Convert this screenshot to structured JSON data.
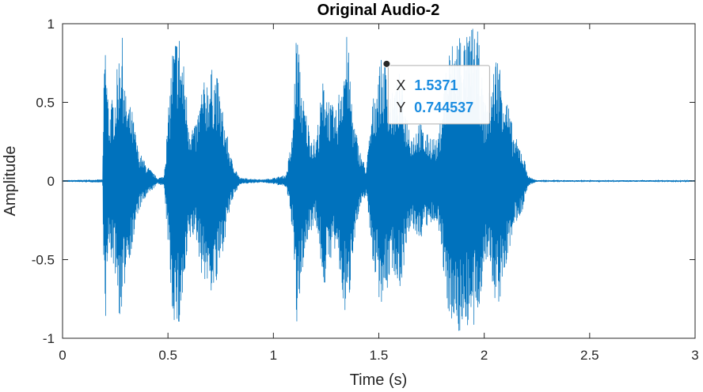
{
  "chart_data": {
    "type": "line",
    "title": "Original Audio-2",
    "xlabel": "Time (s)",
    "ylabel": "Amplitude",
    "xlim": [
      0,
      3
    ],
    "ylim": [
      -1,
      1
    ],
    "xticks": [
      0,
      0.5,
      1,
      1.5,
      2,
      2.5,
      3
    ],
    "xtick_labels": [
      "0",
      "0.5",
      "1",
      "1.5",
      "2",
      "2.5",
      "3"
    ],
    "yticks": [
      -1,
      -0.5,
      0,
      0.5,
      1
    ],
    "ytick_labels": [
      "-1",
      "-0.5",
      "0",
      "0.5",
      "1"
    ],
    "grid": false,
    "series": [
      {
        "color": "#0072bd",
        "envelope": [
          [
            0.0,
            0.005
          ],
          [
            0.19,
            0.01
          ],
          [
            0.2,
            1.0
          ],
          [
            0.22,
            0.45
          ],
          [
            0.25,
            0.6
          ],
          [
            0.28,
            1.0
          ],
          [
            0.3,
            0.55
          ],
          [
            0.33,
            0.45
          ],
          [
            0.36,
            0.2
          ],
          [
            0.4,
            0.1
          ],
          [
            0.45,
            0.02
          ],
          [
            0.48,
            0.03
          ],
          [
            0.5,
            0.4
          ],
          [
            0.52,
            0.85
          ],
          [
            0.55,
            1.0
          ],
          [
            0.58,
            0.7
          ],
          [
            0.6,
            0.4
          ],
          [
            0.63,
            0.35
          ],
          [
            0.66,
            0.6
          ],
          [
            0.7,
            0.72
          ],
          [
            0.73,
            0.7
          ],
          [
            0.76,
            0.45
          ],
          [
            0.8,
            0.15
          ],
          [
            0.84,
            0.02
          ],
          [
            0.95,
            0.01
          ],
          [
            1.0,
            0.02
          ],
          [
            1.06,
            0.04
          ],
          [
            1.09,
            0.3
          ],
          [
            1.11,
            1.0
          ],
          [
            1.14,
            0.55
          ],
          [
            1.17,
            0.35
          ],
          [
            1.2,
            0.25
          ],
          [
            1.24,
            0.7
          ],
          [
            1.27,
            0.5
          ],
          [
            1.3,
            0.45
          ],
          [
            1.32,
            0.7
          ],
          [
            1.35,
            0.95
          ],
          [
            1.38,
            0.4
          ],
          [
            1.41,
            0.2
          ],
          [
            1.44,
            0.08
          ],
          [
            1.47,
            0.5
          ],
          [
            1.5,
            0.75
          ],
          [
            1.53,
            0.8
          ],
          [
            1.56,
            0.55
          ],
          [
            1.6,
            0.7
          ],
          [
            1.63,
            0.45
          ],
          [
            1.66,
            0.3
          ],
          [
            1.69,
            0.4
          ],
          [
            1.72,
            0.3
          ],
          [
            1.75,
            0.3
          ],
          [
            1.78,
            0.25
          ],
          [
            1.82,
            0.8
          ],
          [
            1.85,
            0.9
          ],
          [
            1.88,
            1.0
          ],
          [
            1.91,
            0.9
          ],
          [
            1.94,
            1.0
          ],
          [
            1.97,
            0.95
          ],
          [
            2.0,
            0.5
          ],
          [
            2.03,
            0.6
          ],
          [
            2.06,
            0.85
          ],
          [
            2.1,
            0.6
          ],
          [
            2.14,
            0.3
          ],
          [
            2.18,
            0.2
          ],
          [
            2.21,
            0.03
          ],
          [
            2.25,
            0.005
          ],
          [
            3.0,
            0.005
          ]
        ]
      }
    ],
    "datatip": {
      "x_key": "X",
      "x": "1.5371",
      "y_key": "Y",
      "y": "0.744537"
    }
  }
}
